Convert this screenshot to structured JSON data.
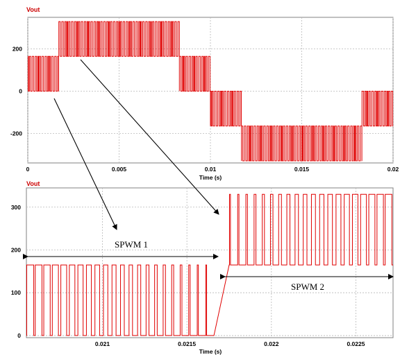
{
  "chart_data": [
    {
      "type": "line",
      "ylabel": "Vout",
      "xlabel": "Time (s)",
      "xlim": [
        0,
        0.02
      ],
      "ylim": [
        -340,
        350
      ],
      "x_ticks": [
        {
          "value": 0,
          "label": "0"
        },
        {
          "value": 0.005,
          "label": "0.005"
        },
        {
          "value": 0.01,
          "label": "0.01"
        },
        {
          "value": 0.015,
          "label": "0.015"
        },
        {
          "value": 0.02,
          "label": "0.02"
        }
      ],
      "y_ticks": [
        {
          "value": 200,
          "label": "200"
        },
        {
          "value": 0,
          "label": "0"
        },
        {
          "value": -200,
          "label": "-200"
        }
      ],
      "grid": true,
      "line_color": "#e00000",
      "levels": [
        {
          "t0": 0.0,
          "t1": 0.0017,
          "low": 0,
          "high": 165
        },
        {
          "t0": 0.0017,
          "t1": 0.0083,
          "low": 165,
          "high": 330
        },
        {
          "t0": 0.0083,
          "t1": 0.01,
          "low": 0,
          "high": 165
        },
        {
          "t0": 0.01,
          "t1": 0.0117,
          "low": -165,
          "high": 0
        },
        {
          "t0": 0.0117,
          "t1": 0.0183,
          "low": -330,
          "high": -165
        },
        {
          "t0": 0.0183,
          "t1": 0.02,
          "low": -165,
          "high": 0
        }
      ]
    },
    {
      "type": "line",
      "ylabel": "Vout",
      "xlabel": "Time (s)",
      "xlim": [
        0.02055,
        0.02272
      ],
      "ylim": [
        -5,
        345
      ],
      "x_ticks": [
        {
          "value": 0.021,
          "label": "0.021"
        },
        {
          "value": 0.0215,
          "label": "0.0215"
        },
        {
          "value": 0.022,
          "label": "0.022"
        },
        {
          "value": 0.0225,
          "label": "0.0225"
        }
      ],
      "y_ticks": [
        {
          "value": 300,
          "label": "300"
        },
        {
          "value": 200,
          "label": "200"
        },
        {
          "value": 100,
          "label": "100"
        },
        {
          "value": 0,
          "label": "0"
        }
      ],
      "grid": true,
      "line_color": "#e00000",
      "segments": [
        {
          "name": "SPWM 1",
          "t0": 0.02055,
          "t1": 0.02166,
          "low": 0,
          "high": 165,
          "pulses": 22
        },
        {
          "t0": 0.02166,
          "t1": 0.02175,
          "low": 165,
          "high": 165,
          "pulses": 0
        },
        {
          "name": "SPWM 2",
          "t0": 0.02175,
          "t1": 0.02272,
          "low": 165,
          "high": 330,
          "pulses": 20
        }
      ],
      "annotations": [
        "SPWM 1",
        "SPWM 2"
      ]
    }
  ]
}
